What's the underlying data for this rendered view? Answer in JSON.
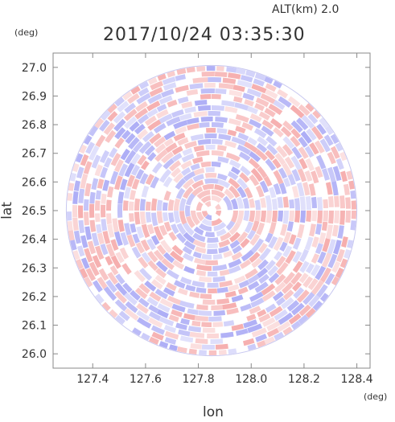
{
  "header": {
    "altitude": "ALT(km) 2.0",
    "timestamp": "2017/10/24 03:35:30"
  },
  "chart_data": {
    "type": "heatmap",
    "title": "2017/10/24 03:35:30",
    "subtitle": "ALT(km) 2.0",
    "xlabel": "lon",
    "ylabel": "lat",
    "x_unit": "(deg)",
    "y_unit": "(deg)",
    "xlim": [
      127.25,
      128.45
    ],
    "ylim": [
      25.95,
      27.05
    ],
    "x_ticks": [
      "127.4",
      "127.6",
      "127.8",
      "128.0",
      "128.2",
      "128.4"
    ],
    "y_ticks": [
      "26.0",
      "26.1",
      "26.2",
      "26.3",
      "26.4",
      "26.5",
      "26.6",
      "26.7",
      "26.8",
      "26.9",
      "27.0"
    ],
    "center": {
      "lon": 127.85,
      "lat": 26.5
    },
    "radius_deg": 0.55,
    "colors": {
      "positive": "#f28b8b",
      "negative": "#8b8bf2",
      "frame": "#888888"
    }
  }
}
